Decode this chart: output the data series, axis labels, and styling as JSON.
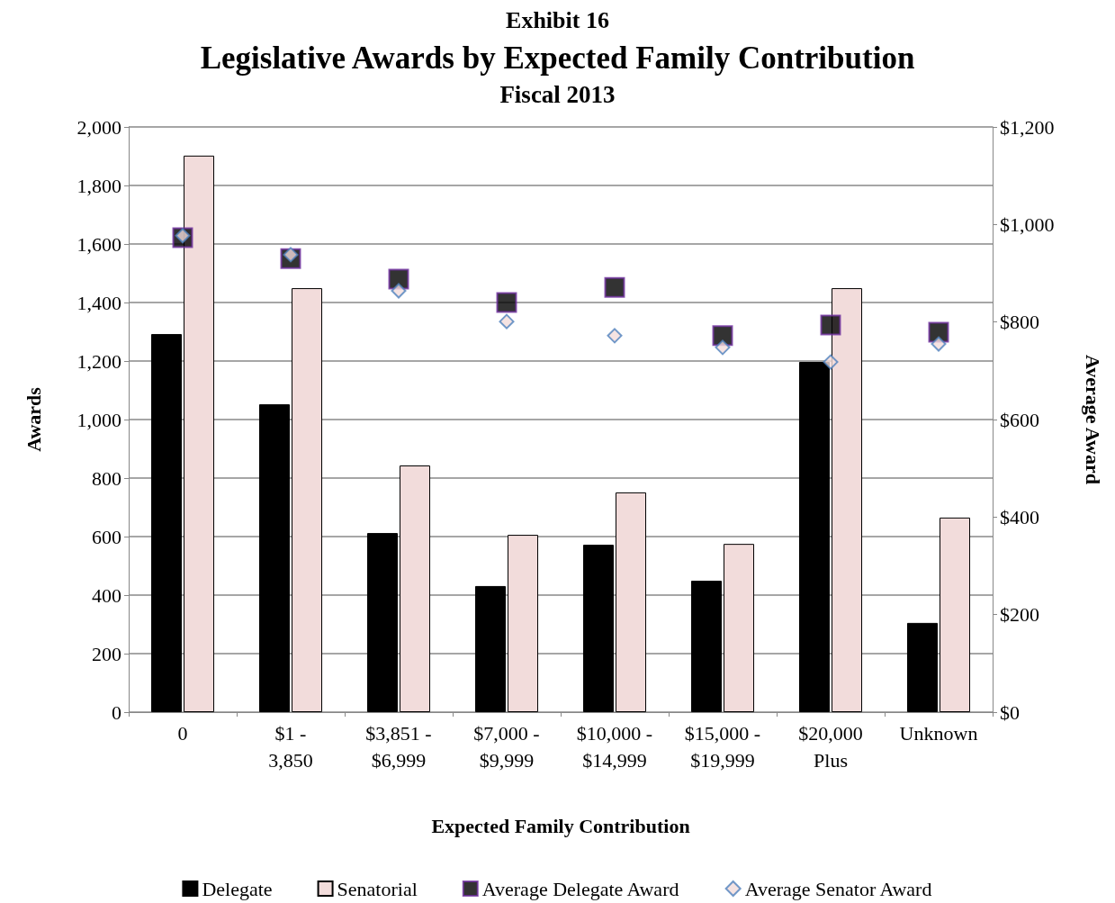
{
  "chart_data": {
    "type": "bar",
    "title": "Legislative Awards by Expected Family Contribution",
    "subtitle": "Fiscal 2013",
    "annotations": [
      "Exhibit 16"
    ],
    "xlabel": "Expected Family Contribution",
    "ylabel": "Awards",
    "y2label": "Average Award",
    "categories": [
      "0",
      "$1 - 3,850",
      "$3,851 - $6,999",
      "$7,000 - $9,999",
      "$10,000 - $14,999",
      "$15,000 - $19,999",
      "$20,000 Plus",
      "Unknown"
    ],
    "series": [
      {
        "name": "Delegate",
        "color": "#000000",
        "values": [
          1292,
          1052,
          612,
          431,
          572,
          449,
          1197,
          305
        ]
      },
      {
        "name": "Senatorial",
        "color": "#f2dcdb",
        "values": [
          1902,
          1449,
          843,
          606,
          751,
          575,
          1449,
          665
        ]
      },
      {
        "name": "Average Delegate Award",
        "type": "scatter",
        "marker": "square",
        "axis": "y2",
        "color": "#000000",
        "x": [
          "0",
          "$1 - 3,850",
          "$3,851 - $6,999",
          "$7,000 - $9,999",
          "$10,000 - $14,999",
          "$15,000 - $19,999",
          "$20,000 Plus",
          "Unknown"
        ],
        "values": [
          973,
          930,
          888,
          840,
          871,
          772,
          794,
          779
        ]
      },
      {
        "name": "Average Senator Award",
        "type": "scatter",
        "marker": "diamond",
        "axis": "y2",
        "color": "#f2dcdb",
        "x": [
          "0",
          "$1 - 3,850",
          "$3,851 - $6,999",
          "$7,000 - $9,999",
          "$10,000 - $14,999",
          "$15,000 - $19,999",
          "$20,000 Plus",
          "Unknown"
        ],
        "values": [
          977,
          938,
          864,
          801,
          772,
          748,
          718,
          755
        ]
      }
    ],
    "ylim": [
      0,
      2000
    ],
    "yticks": [
      0,
      200,
      400,
      600,
      800,
      {
        "value": 1000,
        "label": "1,000"
      },
      {
        "value": 1200,
        "label": "1,200"
      },
      {
        "value": 1400,
        "label": "1,400"
      },
      {
        "value": 1600,
        "label": "1,600"
      },
      {
        "value": 1800,
        "label": "1,800"
      },
      {
        "value": 2000,
        "label": "2,000"
      }
    ],
    "y2lim": [
      0,
      1200
    ],
    "y2ticks": [
      {
        "value": 0,
        "label": "$0"
      },
      {
        "value": 200,
        "label": "$200"
      },
      {
        "value": 400,
        "label": "$400"
      },
      {
        "value": 600,
        "label": "$600"
      },
      {
        "value": 800,
        "label": "$800"
      },
      {
        "value": 1000,
        "label": "$1,000"
      },
      {
        "value": 1200,
        "label": "$1,200"
      }
    ],
    "grid": "y",
    "legend": "bottom"
  }
}
